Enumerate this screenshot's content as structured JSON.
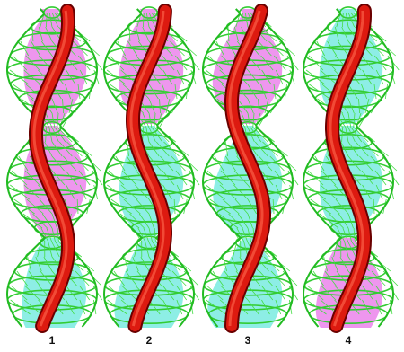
{
  "labels": [
    "1",
    "2",
    "3",
    "4"
  ]
}
